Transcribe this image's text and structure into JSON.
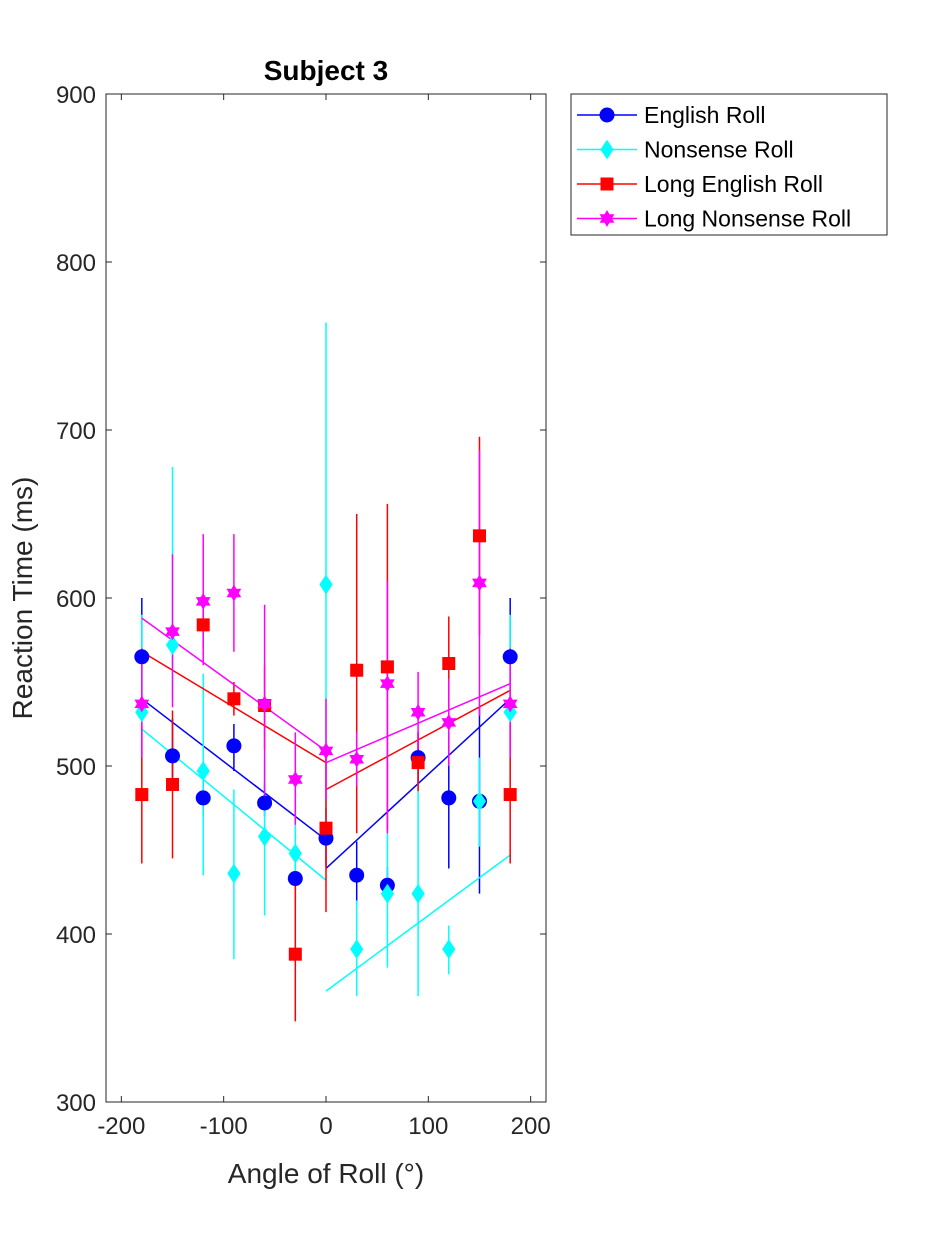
{
  "chart_data": {
    "type": "scatter",
    "title": "Subject 3",
    "xlabel": "Angle of Roll (°)",
    "ylabel": "Reaction Time (ms)",
    "xlim": [
      -215,
      215
    ],
    "ylim": [
      300,
      900
    ],
    "xticks": [
      -200,
      -100,
      0,
      100,
      200
    ],
    "xtick_labels": [
      "-200",
      "-100",
      "0",
      "100",
      "200"
    ],
    "yticks": [
      300,
      400,
      500,
      600,
      700,
      800,
      900
    ],
    "ytick_labels": [
      "300",
      "400",
      "500",
      "600",
      "700",
      "800",
      "900"
    ],
    "grid": false,
    "legend_position": "outside-top-right",
    "x": [
      -180,
      -150,
      -120,
      -90,
      -60,
      -30,
      0,
      30,
      60,
      90,
      120,
      150,
      180
    ],
    "series": [
      {
        "name": "English Roll",
        "color": "#0000ff",
        "marker": "circle",
        "values": [
          565,
          506,
          481,
          512,
          478,
          433,
          457,
          435,
          429,
          505,
          481,
          479,
          565
        ],
        "err_low": [
          535,
          490,
          470,
          497,
          470,
          420,
          440,
          417,
          420,
          490,
          439,
          424,
          535
        ],
        "err_high": [
          600,
          528,
          494,
          525,
          490,
          445,
          475,
          455,
          440,
          520,
          520,
          535,
          600
        ],
        "fit": [
          [
            -180,
            540
          ],
          [
            0,
            456
          ],
          [
            0,
            439
          ],
          [
            180,
            540
          ]
        ]
      },
      {
        "name": "Nonsense Roll",
        "color": "#00ffff",
        "marker": "diamond",
        "values": [
          532,
          572,
          497,
          436,
          458,
          448,
          608,
          391,
          424,
          424,
          391,
          479,
          532
        ],
        "err_low": [
          490,
          540,
          435,
          385,
          411,
          420,
          453,
          363,
          380,
          363,
          376,
          452,
          490
        ],
        "err_high": [
          590,
          678,
          555,
          486,
          505,
          478,
          764,
          420,
          470,
          490,
          405,
          505,
          590
        ],
        "fit": [
          [
            -180,
            522
          ],
          [
            0,
            432
          ],
          [
            0,
            366
          ],
          [
            180,
            447
          ]
        ]
      },
      {
        "name": "Long English Roll",
        "color": "#ff0000",
        "marker": "square",
        "values": [
          483,
          489,
          584,
          540,
          536,
          388,
          463,
          557,
          559,
          502,
          561,
          637,
          483
        ],
        "err_low": [
          442,
          445,
          570,
          530,
          510,
          348,
          413,
          460,
          462,
          485,
          535,
          578,
          442
        ],
        "err_high": [
          525,
          533,
          598,
          550,
          560,
          430,
          513,
          650,
          656,
          520,
          589,
          696,
          525
        ],
        "fit": [
          [
            -180,
            568
          ],
          [
            0,
            502
          ],
          [
            0,
            486
          ],
          [
            180,
            545
          ]
        ]
      },
      {
        "name": "Long Nonsense Roll",
        "color": "#ff00ff",
        "marker": "hexagram",
        "values": [
          537,
          580,
          598,
          603,
          537,
          492,
          509,
          504,
          549,
          532,
          526,
          609,
          537
        ],
        "err_low": [
          505,
          535,
          560,
          568,
          478,
          465,
          480,
          488,
          460,
          510,
          500,
          530,
          505
        ],
        "err_high": [
          570,
          626,
          638,
          638,
          596,
          520,
          540,
          520,
          610,
          556,
          552,
          688,
          570
        ],
        "fit": [
          [
            -180,
            588
          ],
          [
            0,
            509
          ],
          [
            0,
            502
          ],
          [
            180,
            549
          ]
        ]
      }
    ]
  }
}
